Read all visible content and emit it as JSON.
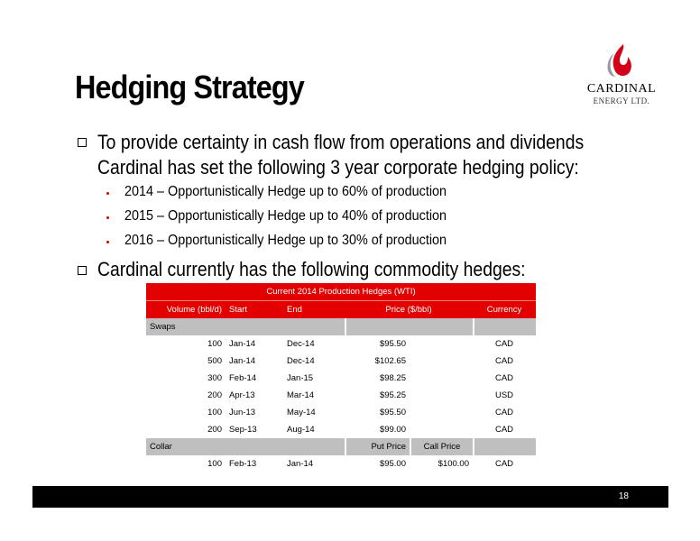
{
  "slide": {
    "title": "Hedging Strategy",
    "page_number": "18"
  },
  "logo": {
    "name": "CARDINAL",
    "sub": "ENERGY LTD."
  },
  "bullets": [
    {
      "text_line1": "To provide certainty in cash flow from operations and dividends",
      "text_line2": "Cardinal has set the following 3 year corporate hedging policy:"
    },
    {
      "text_line1": "Cardinal currently has the following commodity hedges:"
    }
  ],
  "sub_bullets": [
    "2014 – Opportunistically Hedge up to 60% of production",
    "2015 – Opportunistically Hedge up to 40% of production",
    "2016 – Opportunistically Hedge up to 30% of production"
  ],
  "table": {
    "title": "Current 2014 Production Hedges (WTI)",
    "headers": [
      "Volume (bbl/d)",
      "Start",
      "End",
      "Price ($/bbl)",
      "Currency"
    ],
    "swaps_label": "Swaps",
    "swaps": [
      {
        "volume": "100",
        "start": "Jan-14",
        "end": "Dec-14",
        "price": "$95.50",
        "currency": "CAD"
      },
      {
        "volume": "500",
        "start": "Jan-14",
        "end": "Dec-14",
        "price": "$102.65",
        "currency": "CAD"
      },
      {
        "volume": "300",
        "start": "Feb-14",
        "end": "Jan-15",
        "price": "$98.25",
        "currency": "CAD"
      },
      {
        "volume": "200",
        "start": "Apr-13",
        "end": "Mar-14",
        "price": "$95.25",
        "currency": "USD"
      },
      {
        "volume": "100",
        "start": "Jun-13",
        "end": "May-14",
        "price": "$95.50",
        "currency": "CAD"
      },
      {
        "volume": "200",
        "start": "Sep-13",
        "end": "Aug-14",
        "price": "$99.00",
        "currency": "CAD"
      }
    ],
    "collar_label": "Collar",
    "put_price_label": "Put Price",
    "call_price_label": "Call Price",
    "collar": [
      {
        "volume": "100",
        "start": "Feb-13",
        "end": "Jan-14",
        "put": "$95.00",
        "call": "$100.00",
        "currency": "CAD"
      }
    ]
  },
  "colors": {
    "accent_red": "#e30000",
    "grey_band": "#bfbfbf",
    "footer": "#000000"
  }
}
